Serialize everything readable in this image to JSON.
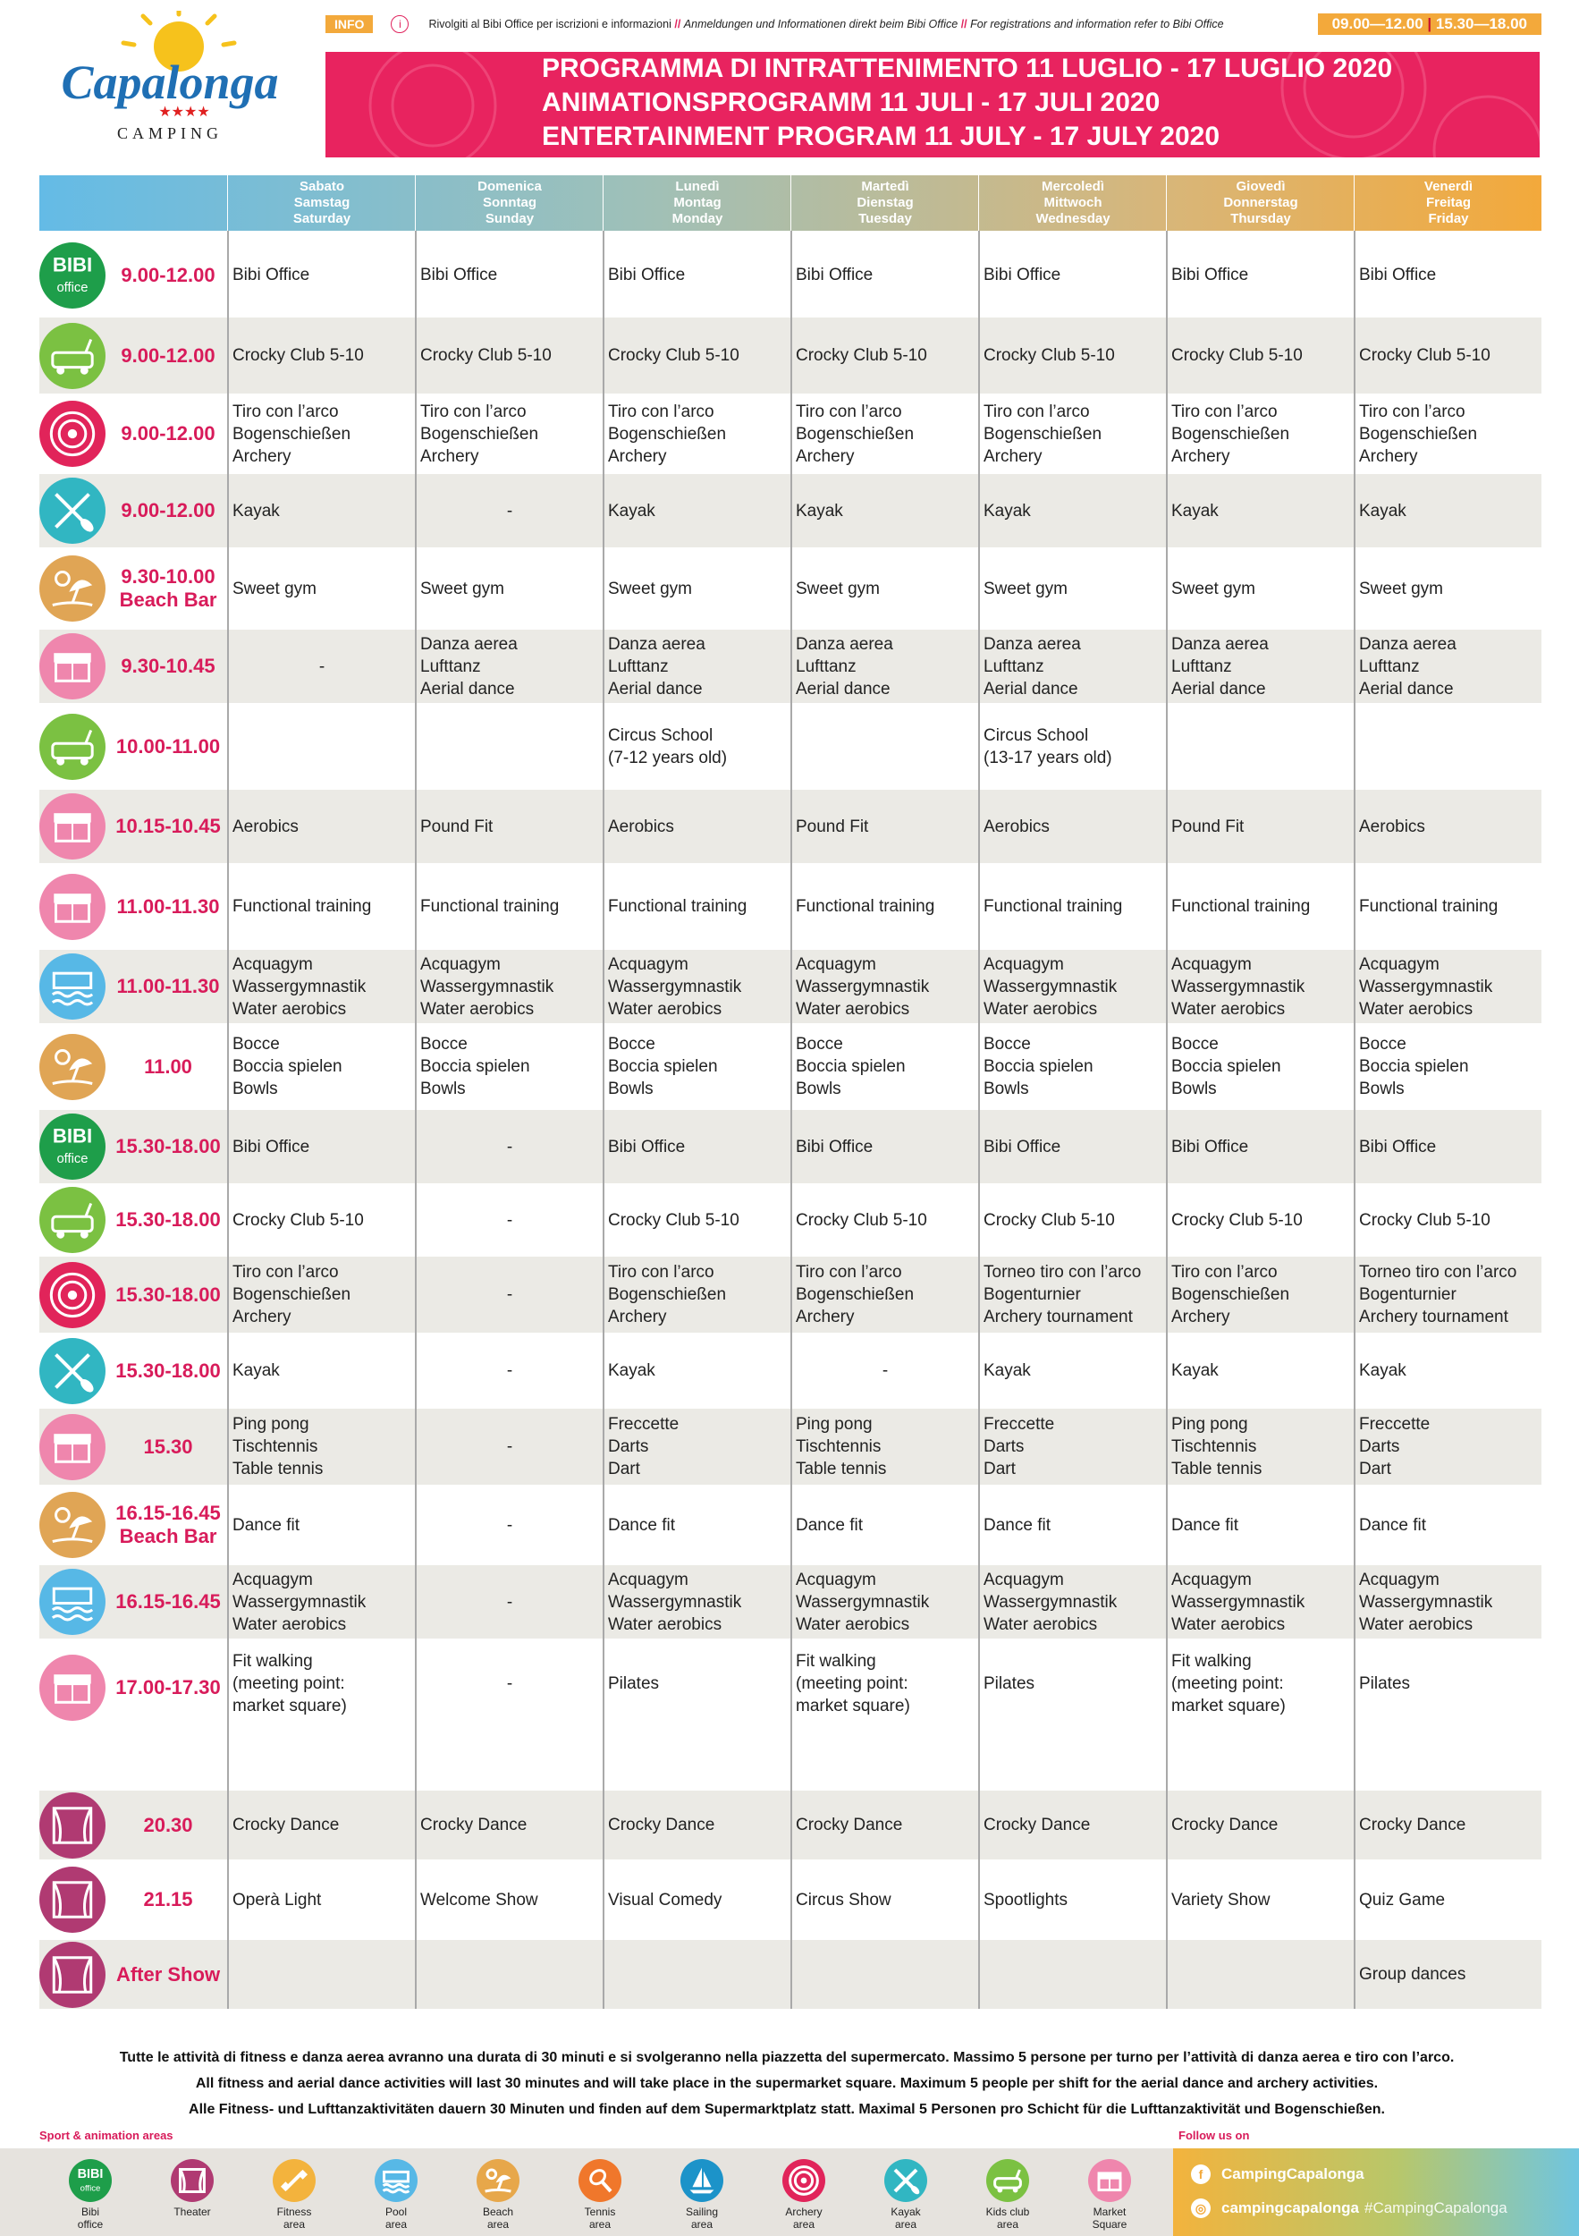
{
  "header": {
    "logo_text": "Capalonga",
    "logo_stars": "★★★★",
    "logo_sub": "CAMPING",
    "info_tag": "INFO",
    "info_icon": "i",
    "info_it": "Rivolgiti al Bibi Office per iscrizioni e informazioni",
    "info_sep": "//",
    "info_de": "Anmeldungen und Informationen direkt beim Bibi Office",
    "info_en": "For registrations and information refer to Bibi Office",
    "hours_am": "09.00—12.00",
    "hours_pm": "15.30—18.00",
    "title_it": "PROGRAMMA DI INTRATTENIMENTO 11 LUGLIO - 17 LUGLIO 2020",
    "title_de": "ANIMATIONSPROGRAMM 11 JULI - 17 JULI 2020",
    "title_en": "ENTERTAINMENT PROGRAM 11 JULY - 17 JULY 2020"
  },
  "days": [
    {
      "it": "Sabato",
      "de": "Samstag",
      "en": "Saturday",
      "color": "#8fbfd1"
    },
    {
      "it": "Domenica",
      "de": "Sonntag",
      "en": "Sunday",
      "color": "#93bdbf"
    },
    {
      "it": "Lunedì",
      "de": "Montag",
      "en": "Monday",
      "color": "#a9bf9f"
    },
    {
      "it": "Martedì",
      "de": "Dienstag",
      "en": "Tuesday",
      "color": "#c4be8f"
    },
    {
      "it": "Mercoledì",
      "de": "Mittwoch",
      "en": "Wednesday",
      "color": "#d7b877"
    },
    {
      "it": "Giovedì",
      "de": "Donnerstag",
      "en": "Thursday",
      "color": "#e2b25e"
    },
    {
      "it": "Venerdì",
      "de": "Freitag",
      "en": "Friday",
      "color": "#eeaa43"
    }
  ],
  "rows": [
    {
      "icon": "bibi-office-icon",
      "time": "9.00-12.00",
      "cells": [
        "Bibi Office",
        "Bibi Office",
        "Bibi Office",
        "Bibi Office",
        "Bibi Office",
        "Bibi Office",
        "Bibi Office"
      ]
    },
    {
      "icon": "kids-club-icon",
      "time": "9.00-12.00",
      "cells": [
        "Crocky Club 5-10",
        "Crocky Club 5-10",
        "Crocky Club 5-10",
        "Crocky Club 5-10",
        "Crocky Club 5-10",
        "Crocky Club 5-10",
        "Crocky Club 5-10"
      ]
    },
    {
      "icon": "archery-icon",
      "time": "9.00-12.00",
      "cells": [
        "Tiro con l’arco\nBogenschießen\nArchery",
        "Tiro con l’arco\nBogenschießen\nArchery",
        "Tiro con l’arco\nBogenschießen\nArchery",
        "Tiro con l’arco\nBogenschießen\nArchery",
        "Tiro con l’arco\nBogenschießen\nArchery",
        "Tiro con l’arco\nBogenschießen\nArchery",
        "Tiro con l’arco\nBogenschießen\nArchery"
      ]
    },
    {
      "icon": "kayak-icon",
      "time": "9.00-12.00",
      "cells": [
        "Kayak",
        "-",
        "Kayak",
        "Kayak",
        "Kayak",
        "Kayak",
        "Kayak"
      ]
    },
    {
      "icon": "beach-icon",
      "time": "9.30-10.00\nBeach Bar",
      "cells": [
        "Sweet gym",
        "Sweet gym",
        "Sweet gym",
        "Sweet gym",
        "Sweet gym",
        "Sweet gym",
        "Sweet gym"
      ]
    },
    {
      "icon": "market-icon",
      "time": "9.30-10.45",
      "cells": [
        "-",
        "Danza aerea\nLufttanz\nAerial dance",
        "Danza aerea\nLufttanz\nAerial dance",
        "Danza aerea\nLufttanz\nAerial dance",
        "Danza aerea\nLufttanz\nAerial dance",
        "Danza aerea\nLufttanz\nAerial dance",
        "Danza aerea\nLufttanz\nAerial dance"
      ]
    },
    {
      "icon": "kids-club-icon",
      "time": "10.00-11.00",
      "cells": [
        "",
        "",
        "Circus School\n(7-12 years old)",
        "",
        "Circus School\n(13-17 years old)",
        "",
        ""
      ]
    },
    {
      "icon": "market-icon",
      "time": "10.15-10.45",
      "cells": [
        "Aerobics",
        "Pound Fit",
        "Aerobics",
        "Pound Fit",
        "Aerobics",
        "Pound Fit",
        "Aerobics"
      ]
    },
    {
      "icon": "market-icon",
      "time": "11.00-11.30",
      "cells": [
        "Functional training",
        "Functional training",
        "Functional training",
        "Functional training",
        "Functional training",
        "Functional training",
        "Functional training"
      ]
    },
    {
      "icon": "pool-icon",
      "time": "11.00-11.30",
      "cells": [
        "Acquagym\nWassergymnastik\nWater aerobics",
        "Acquagym\nWassergymnastik\nWater aerobics",
        "Acquagym\nWassergymnastik\nWater aerobics",
        "Acquagym\nWassergymnastik\nWater aerobics",
        "Acquagym\nWassergymnastik\nWater aerobics",
        "Acquagym\nWassergymnastik\nWater aerobics",
        "Acquagym\nWassergymnastik\nWater aerobics"
      ]
    },
    {
      "icon": "beach-icon",
      "time": "11.00",
      "cells": [
        "Bocce\nBoccia spielen\nBowls",
        "Bocce\nBoccia spielen\nBowls",
        "Bocce\nBoccia spielen\nBowls",
        "Bocce\nBoccia spielen\nBowls",
        "Bocce\nBoccia spielen\nBowls",
        "Bocce\nBoccia spielen\nBowls",
        "Bocce\nBoccia spielen\nBowls"
      ]
    },
    {
      "icon": "bibi-office-icon",
      "time": "15.30-18.00",
      "cells": [
        "Bibi Office",
        "-",
        "Bibi Office",
        "Bibi Office",
        "Bibi Office",
        "Bibi Office",
        "Bibi Office"
      ]
    },
    {
      "icon": "kids-club-icon",
      "time": "15.30-18.00",
      "cells": [
        "Crocky Club 5-10",
        "-",
        "Crocky Club 5-10",
        "Crocky Club 5-10",
        "Crocky Club 5-10",
        "Crocky Club 5-10",
        "Crocky Club 5-10"
      ]
    },
    {
      "icon": "archery-icon",
      "time": "15.30-18.00",
      "cells": [
        "Tiro con l’arco\nBogenschießen\nArchery",
        "-",
        "Tiro con l’arco\nBogenschießen\nArchery",
        "Tiro con l’arco\nBogenschießen\nArchery",
        "Torneo tiro con l’arco\nBogenturnier\nArchery tournament",
        "Tiro con l’arco\nBogenschießen\nArchery",
        "Torneo tiro con l’arco\nBogenturnier\nArchery tournament"
      ]
    },
    {
      "icon": "kayak-icon",
      "time": "15.30-18.00",
      "cells": [
        "Kayak",
        "-",
        "Kayak",
        "-",
        "Kayak",
        "Kayak",
        "Kayak"
      ]
    },
    {
      "icon": "market-icon",
      "time": "15.30",
      "cells": [
        "Ping pong\nTischtennis\nTable tennis",
        "-",
        "Freccette\nDarts\nDart",
        "Ping pong\nTischtennis\nTable tennis",
        "Freccette\nDarts\nDart",
        "Ping pong\nTischtennis\nTable tennis",
        "Freccette\nDarts\nDart"
      ]
    },
    {
      "icon": "beach-icon",
      "time": "16.15-16.45\nBeach Bar",
      "cells": [
        "Dance fit",
        "-",
        "Dance fit",
        "Dance fit",
        "Dance fit",
        "Dance fit",
        "Dance fit"
      ]
    },
    {
      "icon": "pool-icon",
      "time": "16.15-16.45",
      "cells": [
        "Acquagym\nWassergymnastik\nWater aerobics",
        "-",
        "Acquagym\nWassergymnastik\nWater aerobics",
        "Acquagym\nWassergymnastik\nWater aerobics",
        "Acquagym\nWassergymnastik\nWater aerobics",
        "Acquagym\nWassergymnastik\nWater aerobics",
        "Acquagym\nWassergymnastik\nWater aerobics"
      ]
    },
    {
      "icon": "market-icon",
      "time": "17.00-17.30",
      "cells": [
        "Fit walking\n(meeting point:\nmarket square)",
        "-",
        "Pilates",
        "Fit walking\n(meeting point:\nmarket square)",
        "Pilates",
        "Fit walking\n(meeting point:\nmarket square)",
        "Pilates"
      ]
    },
    {
      "icon": "theater-icon",
      "time": "20.30",
      "cells": [
        "Crocky Dance",
        "Crocky Dance",
        "Crocky Dance",
        "Crocky Dance",
        "Crocky Dance",
        "Crocky Dance",
        "Crocky Dance"
      ]
    },
    {
      "icon": "theater-icon",
      "time": "21.15",
      "cells": [
        "Operà Light",
        "Welcome Show",
        "Visual Comedy",
        "Circus Show",
        "Spootlights",
        "Variety Show",
        "Quiz Game"
      ]
    },
    {
      "icon": "theater-icon",
      "time": "After Show",
      "cells": [
        "",
        "",
        "",
        "",
        "",
        "",
        "Group dances"
      ]
    }
  ],
  "footer": {
    "note_it": "Tutte le attività di fitness e danza aerea avranno una durata di 30 minuti e si svolgeranno nella piazzetta del supermercato.  Massimo 5 persone per turno per l’attività di danza aerea e tiro con l’arco.",
    "note_en": "All fitness and aerial dance activities will last 30 minutes and will take place in the supermarket square.  Maximum 5 people per shift for the aerial dance and archery activities.",
    "note_de": "Alle Fitness- und Lufttanzaktivitäten dauern 30 Minuten und finden auf dem Supermarktplatz statt.  Maximal 5 Personen pro Schicht für die Lufttanzaktivität und Bogenschießen.",
    "sport_title": "Sport & animation areas",
    "follow_title": "Follow us on",
    "areas": [
      {
        "label": "Bibi\noffice",
        "icon": "bibi-office-icon",
        "color": "#1e9e4a"
      },
      {
        "label": "Theater",
        "icon": "theater-icon",
        "color": "#b03a72"
      },
      {
        "label": "Fitness\narea",
        "icon": "fitness-icon",
        "color": "#f3b33d"
      },
      {
        "label": "Pool\narea",
        "icon": "pool-icon",
        "color": "#57b8e6"
      },
      {
        "label": "Beach\narea",
        "icon": "beach-icon",
        "color": "#e7a74a"
      },
      {
        "label": "Tennis\narea",
        "icon": "tennis-icon",
        "color": "#f0772b"
      },
      {
        "label": "Sailing\narea",
        "icon": "sailing-icon",
        "color": "#1c93c9"
      },
      {
        "label": "Archery\narea",
        "icon": "archery-icon",
        "color": "#e1245a"
      },
      {
        "label": "Kayak\narea",
        "icon": "kayak-icon",
        "color": "#31b6c2"
      },
      {
        "label": "Kids club\narea",
        "icon": "kids-club-icon",
        "color": "#7bc142"
      },
      {
        "label": "Market\nSquare",
        "icon": "market-icon",
        "color": "#ef86ad"
      }
    ],
    "facebook": "CampingCapalonga",
    "instagram": "campingcapalonga",
    "hashtag": "#CampingCapalonga"
  },
  "icon_colors": {
    "bibi-office-icon": "#1e9e4a",
    "kids-club-icon": "#7bc142",
    "archery-icon": "#e1245a",
    "kayak-icon": "#31b6c2",
    "beach-icon": "#e0a555",
    "market-icon": "#ef86ad",
    "pool-icon": "#57b8e6",
    "theater-icon": "#b03a72"
  }
}
